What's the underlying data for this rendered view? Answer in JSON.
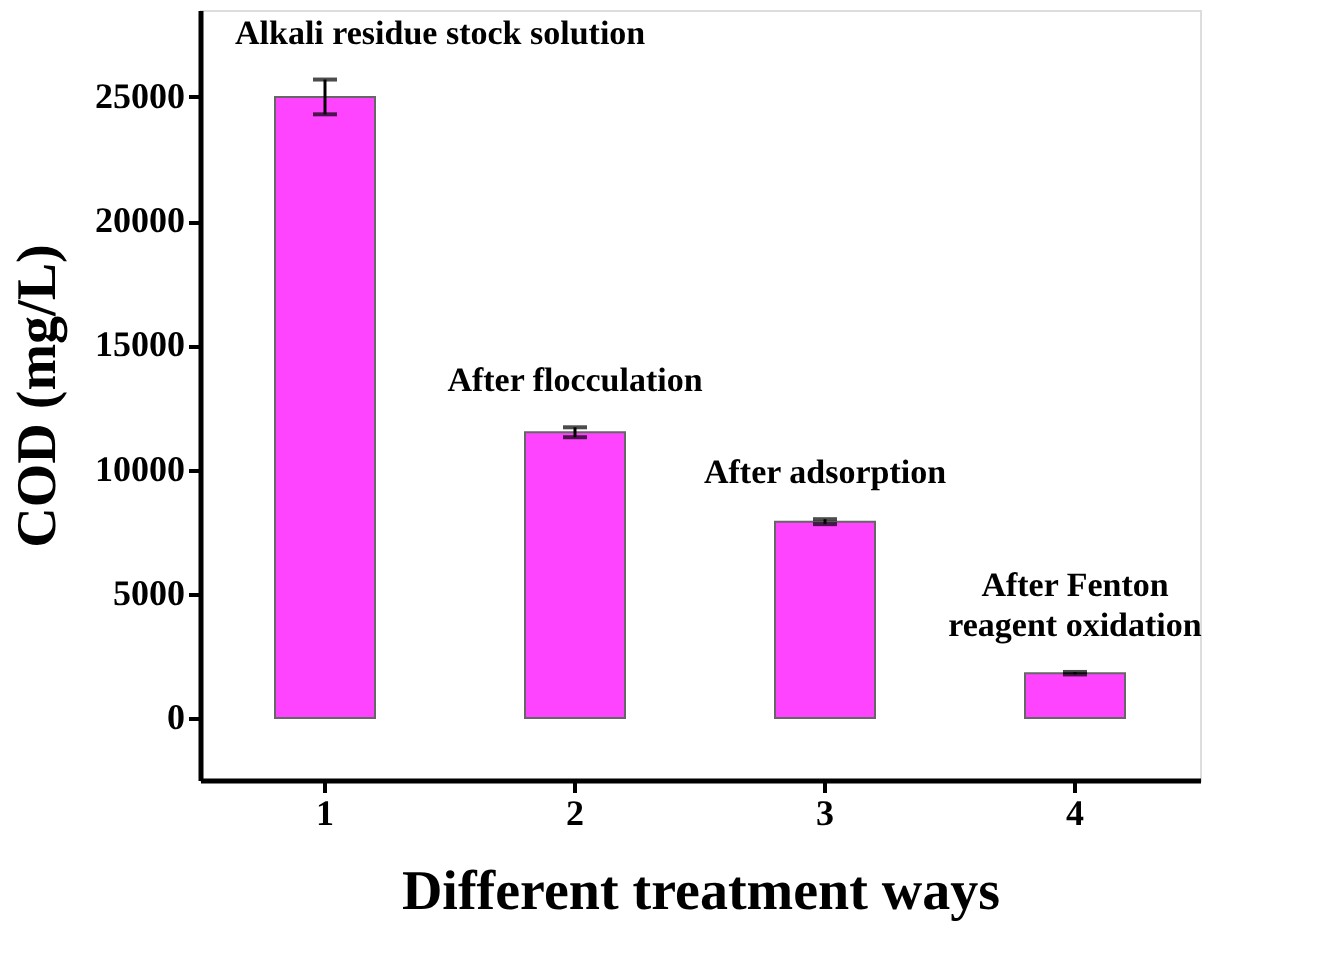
{
  "chart_data": {
    "type": "bar",
    "xlabel": "Different treatment ways",
    "ylabel": "COD (mg/L)",
    "categories": [
      "1",
      "2",
      "3",
      "4"
    ],
    "values": [
      25000,
      11500,
      7900,
      1800
    ],
    "errors": [
      700,
      200,
      100,
      50
    ],
    "color": "#ff44ff",
    "ylim": [
      -2500,
      28500
    ],
    "yticks": [
      0,
      5000,
      10000,
      15000,
      20000,
      25000
    ],
    "grid": false,
    "annotations": [
      {
        "text": "Alkali residue stock solution",
        "x": "1",
        "y": 25000
      },
      {
        "text": "After flocculation",
        "x": "2",
        "y": 11500
      },
      {
        "text": "After adsorption",
        "x": "3",
        "y": 7900
      },
      {
        "text": "After Fenton\nreagent oxidation",
        "x": "4",
        "y": 1800
      }
    ]
  }
}
